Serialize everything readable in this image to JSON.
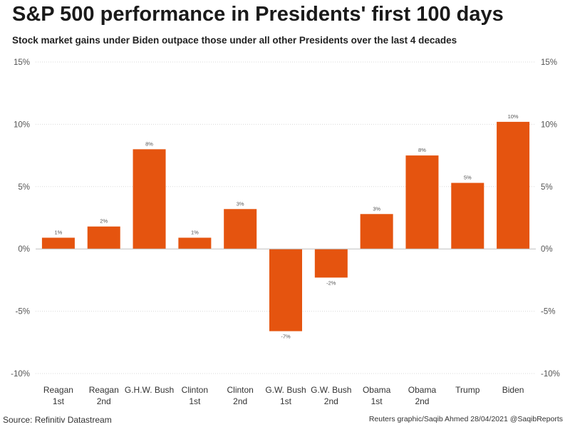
{
  "title": "S&P 500 performance in Presidents' first 100 days",
  "subtitle": "Stock market gains under Biden outpace those under all other Presidents over the last 4 decades",
  "source": "Source: Refinitiv Datastream",
  "credit": "Reuters graphic/Saqib Ahmed 28/04/2021 @SaqibReports",
  "colors": {
    "bar": "#e5540f",
    "grid": "#d9d9d9",
    "zero": "#bfbfbf"
  },
  "chart_data": {
    "type": "bar",
    "categories": [
      [
        "Reagan",
        "1st"
      ],
      [
        "Reagan",
        "2nd"
      ],
      [
        "G.H.W. Bush"
      ],
      [
        "Clinton",
        "1st"
      ],
      [
        "Clinton",
        "2nd"
      ],
      [
        "G.W. Bush",
        "1st"
      ],
      [
        "G.W. Bush",
        "2nd"
      ],
      [
        "Obama",
        "1st"
      ],
      [
        "Obama",
        "2nd"
      ],
      [
        "Trump"
      ],
      [
        "Biden"
      ]
    ],
    "values": [
      0.9,
      1.8,
      8.0,
      0.9,
      3.2,
      -6.6,
      -2.3,
      2.8,
      7.5,
      5.3,
      10.2
    ],
    "data_labels": [
      "1%",
      "2%",
      "8%",
      "1%",
      "3%",
      "-7%",
      "-2%",
      "3%",
      "8%",
      "5%",
      "10%"
    ],
    "yticks": [
      15,
      10,
      5,
      0,
      -5,
      -10
    ],
    "ytick_labels": [
      "15%",
      "10%",
      "5%",
      "0%",
      "-5%",
      "-10%"
    ],
    "ylim": [
      -10,
      15
    ],
    "grid": true,
    "axis_labels_both_sides": true
  }
}
